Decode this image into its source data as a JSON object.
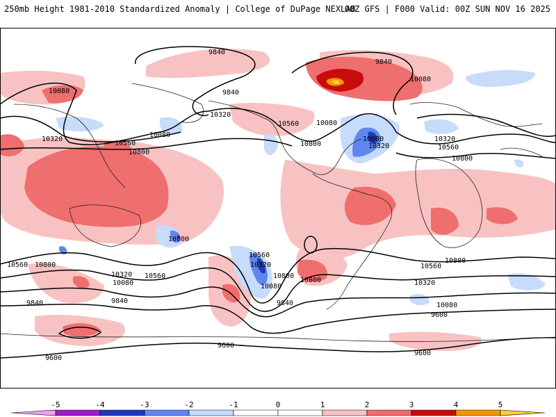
{
  "header": {
    "left": "250mb Height 1981-2010 Standardized Anomaly | College of DuPage NEXLAB",
    "right": "00Z GFS | F000 Valid: 00Z SUN NOV 16 2025"
  },
  "colors": {
    "n5": "#f0a0f0",
    "n4": "#9a1cc8",
    "n3": "#1c3ab8",
    "n2": "#5f86f0",
    "n1": "#c7dbfb",
    "zero": "#ffffff",
    "p1": "#f8c2c2",
    "p2": "#ef6e6e",
    "p3": "#c80b0b",
    "p4": "#f09a00",
    "p5": "#ffcf33",
    "coast": "#222222"
  },
  "colorbar": {
    "ticks": [
      "-5",
      "-4",
      "-3",
      "-2",
      "-1",
      "0",
      "1",
      "2",
      "3",
      "4",
      "5"
    ]
  },
  "contour_labels": [
    "9840",
    "9840",
    "10080",
    "10080",
    "9840",
    "10080",
    "10320",
    "10320",
    "10560",
    "10800",
    "10560",
    "10080",
    "10800",
    "10080",
    "10320",
    "10320",
    "10560",
    "10800",
    "10800",
    "10560",
    "10800",
    "10320",
    "10080",
    "10560",
    "10560",
    "10320",
    "10800",
    "10080",
    "10800",
    "9840",
    "9840",
    "10560",
    "10800",
    "10320",
    "10080",
    "9840",
    "9600",
    "9600",
    "9600"
  ]
}
